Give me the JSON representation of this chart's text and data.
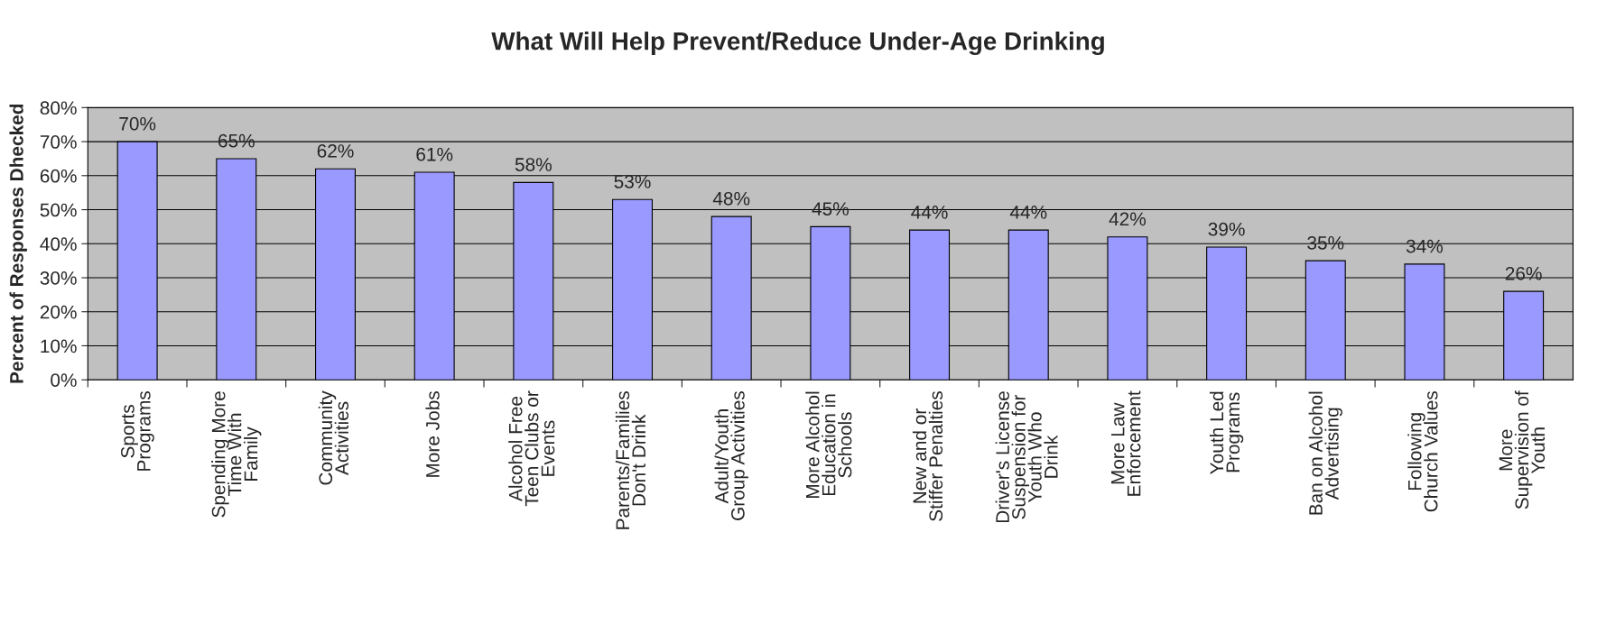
{
  "chart_data": {
    "type": "bar",
    "title": "What Will Help Prevent/Reduce Under-Age Drinking",
    "ylabel": "Percent of Responses Dhecked",
    "categories": [
      "Sports\nPrograms",
      "Spending More\nTime With\nFamily",
      "Community\nActivities",
      "More Jobs",
      "Alcohol Free\nTeen Clubs or\nEvents",
      "Parents/Families\nDon't Drink",
      "Adult/Youth\nGroup Activities",
      "More Alcohol\nEducation in\nSchools",
      "New and or\nStiffer Penalties",
      "Driver's License\nSuspension for\nYouth Who\nDrink",
      "More Law\nEnforcement",
      "Youth Led\nPrograms",
      "Ban on Alcohol\nAdvertising",
      "Following\nChurch Values",
      "More\nSupervision of\nYouth"
    ],
    "values": [
      70,
      65,
      62,
      61,
      58,
      53,
      48,
      45,
      44,
      44,
      42,
      39,
      35,
      34,
      26
    ],
    "value_labels": [
      "70%",
      "65%",
      "62%",
      "61%",
      "58%",
      "53%",
      "48%",
      "45%",
      "44%",
      "44%",
      "42%",
      "39%",
      "35%",
      "34%",
      "26%"
    ],
    "color": "#9999ff",
    "ylim": [
      0,
      80
    ],
    "yticks": [
      {
        "value": 0,
        "label": "0%"
      },
      {
        "value": 10,
        "label": "10%"
      },
      {
        "value": 20,
        "label": "20%"
      },
      {
        "value": 30,
        "label": "30%"
      },
      {
        "value": 40,
        "label": "40%"
      },
      {
        "value": 50,
        "label": "50%"
      },
      {
        "value": 60,
        "label": "60%"
      },
      {
        "value": 70,
        "label": "70%"
      },
      {
        "value": 80,
        "label": "80%"
      }
    ],
    "grid": "y",
    "legend": false
  }
}
